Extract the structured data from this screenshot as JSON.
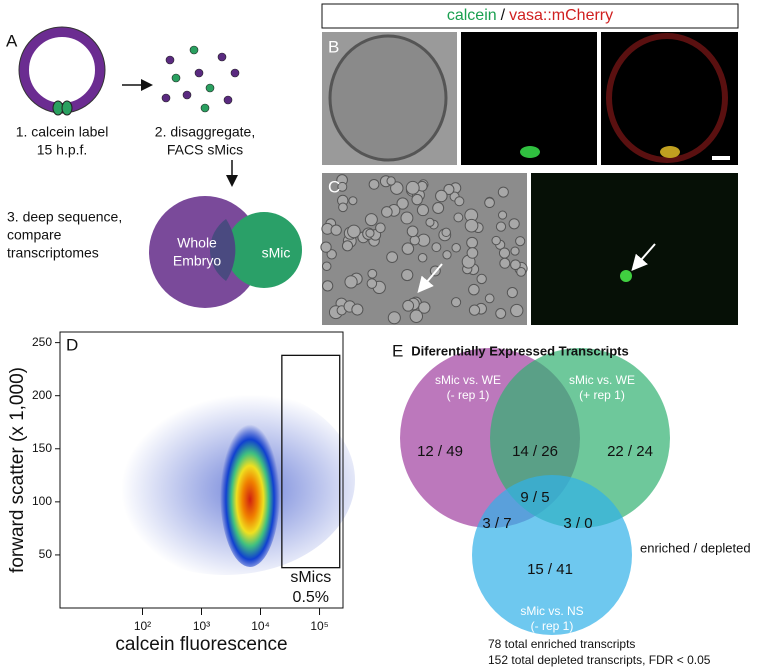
{
  "panel_a": {
    "letter": "A",
    "step1": [
      "1. calcein label",
      "15 h.p.f."
    ],
    "step2": [
      "2. disaggregate,",
      "FACS sMics"
    ],
    "step3": [
      "3. deep sequence,",
      "compare",
      "transcriptomes"
    ],
    "venn_left": [
      "Whole",
      "Embryo"
    ],
    "venn_right": "sMic"
  },
  "panel_b": {
    "letter": "B",
    "legend_green": "calcein",
    "legend_sep": "/",
    "legend_red": "vasa::mCherry"
  },
  "panel_c": {
    "letter": "C"
  },
  "chart_data": {
    "type": "scatter",
    "letter": "D",
    "xlabel": "calcein fluorescence",
    "ylabel": "forward scatter (x 1,000)",
    "xscale": "log",
    "xlim": [
      4,
      250000
    ],
    "xticks": [
      {
        "value": 100,
        "label": "10²"
      },
      {
        "value": 1000,
        "label": "10³"
      },
      {
        "value": 10000,
        "label": "10⁴"
      },
      {
        "value": 100000,
        "label": "10⁵"
      }
    ],
    "ylim": [
      0,
      260
    ],
    "yticks": [
      50,
      100,
      150,
      200,
      250
    ],
    "gate": {
      "x": [
        23000,
        220000
      ],
      "y": [
        38,
        238
      ]
    },
    "gate_label": "sMics",
    "gate_percent": "0.5%"
  },
  "panel_e": {
    "letter": "E",
    "title": "Diferentially Expressed Transcripts",
    "set_left": [
      "sMic vs. WE",
      "(- rep 1)"
    ],
    "set_right": [
      "sMic vs. WE",
      "(+ rep 1)"
    ],
    "set_bottom": [
      "sMic vs. NS",
      "(- rep 1)"
    ],
    "counts": {
      "left": "12 / 49",
      "left_right": "14 / 26",
      "right": "22 / 24",
      "center": "9 / 5",
      "left_bottom": "3 / 7",
      "right_bottom": "3 / 0",
      "bottom": "15 / 41"
    },
    "key": "enriched / depleted",
    "footnote": [
      "78 total enriched transcripts",
      "152 total depleted transcripts, FDR < 0.05"
    ]
  }
}
